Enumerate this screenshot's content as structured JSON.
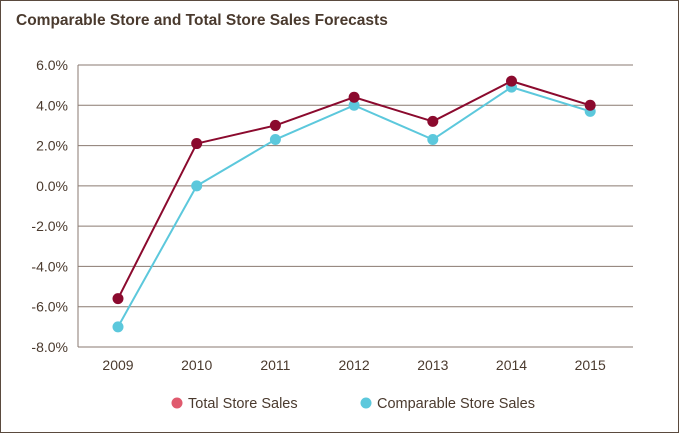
{
  "chart_data": {
    "type": "line",
    "title": "Comparable Store and Total Store Sales Forecasts",
    "xlabel": "",
    "ylabel": "",
    "categories": [
      "2009",
      "2010",
      "2011",
      "2012",
      "2013",
      "2014",
      "2015"
    ],
    "ylim": [
      -8.0,
      6.0
    ],
    "yticks": [
      "6.0%",
      "4.0%",
      "2.0%",
      "0.0%",
      "-2.0%",
      "-4.0%",
      "-6.0%",
      "-8.0%"
    ],
    "ytick_values": [
      6,
      4,
      2,
      0,
      -2,
      -4,
      -6,
      -8
    ],
    "grid": true,
    "legend_position": "bottom",
    "series": [
      {
        "name": "Total Store Sales",
        "values": [
          -5.6,
          2.1,
          3.0,
          4.4,
          3.2,
          5.2,
          4.0
        ],
        "line_color": "#8b0a2e",
        "marker_color": "#8b0a2e",
        "legend_color": "#e05a6e"
      },
      {
        "name": "Comparable Store Sales",
        "values": [
          -7.0,
          0.0,
          2.3,
          4.0,
          2.3,
          4.9,
          3.7
        ],
        "line_color": "#5cc8dc",
        "marker_color": "#5cc8dc",
        "legend_color": "#5cc8dc"
      }
    ]
  }
}
